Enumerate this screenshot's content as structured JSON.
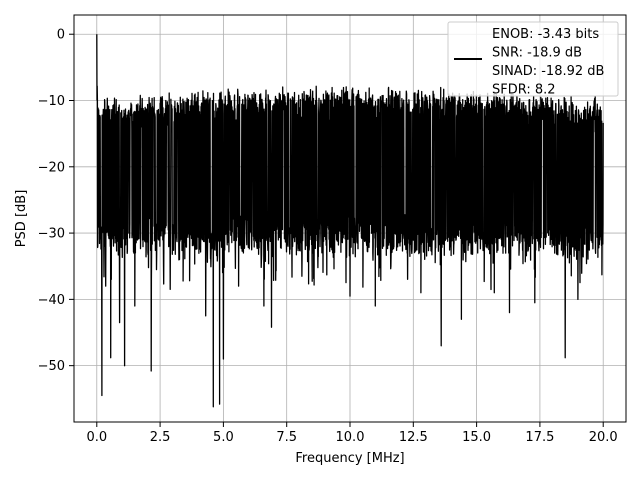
{
  "chart_data": {
    "type": "line",
    "title": "",
    "xlabel": "Frequency [MHz]",
    "ylabel": "PSD [dB]",
    "xlim": [
      -0.9,
      20.9
    ],
    "ylim": [
      -58.5,
      2.9
    ],
    "xticks": [
      0.0,
      2.5,
      5.0,
      7.5,
      10.0,
      12.5,
      15.0,
      17.5,
      20.0
    ],
    "xtick_labels": [
      "0.0",
      "2.5",
      "5.0",
      "7.5",
      "10.0",
      "12.5",
      "15.0",
      "17.5",
      "20.0"
    ],
    "yticks": [
      0,
      -10,
      -20,
      -30,
      -40,
      -50
    ],
    "ytick_labels": [
      "0",
      "−10",
      "−20",
      "−30",
      "−40",
      "−50"
    ],
    "grid": true,
    "legend_position": "top-right",
    "legend_entries": [
      "ENOB: -3.43 bits",
      "SNR: -18.9 dB",
      "SINAD: -18.92 dB",
      "SFDR: 8.2"
    ],
    "series": [
      {
        "color": "#000000",
        "approximate_envelope": {
          "peak_at_zero": 0,
          "typical_upper": -12,
          "typical_lower": -30
        },
        "notable_dips": [
          {
            "x": 0.2,
            "y": -54.5
          },
          {
            "x": 0.55,
            "y": -48.8
          },
          {
            "x": 1.1,
            "y": -50.0
          },
          {
            "x": 2.15,
            "y": -50.8
          },
          {
            "x": 4.6,
            "y": -56.2
          },
          {
            "x": 4.85,
            "y": -55.8
          },
          {
            "x": 5.0,
            "y": -49.0
          },
          {
            "x": 13.6,
            "y": -47.0
          },
          {
            "x": 18.5,
            "y": -48.8
          }
        ],
        "minor_dips": [
          {
            "x": 0.35,
            "y": -38.0
          },
          {
            "x": 0.9,
            "y": -43.5
          },
          {
            "x": 1.5,
            "y": -41.0
          },
          {
            "x": 2.9,
            "y": -38.5
          },
          {
            "x": 4.3,
            "y": -42.5
          },
          {
            "x": 5.6,
            "y": -38.0
          },
          {
            "x": 6.6,
            "y": -41.0
          },
          {
            "x": 6.9,
            "y": -44.2
          },
          {
            "x": 8.1,
            "y": -36.5
          },
          {
            "x": 10.0,
            "y": -39.5
          },
          {
            "x": 11.0,
            "y": -41.0
          },
          {
            "x": 12.8,
            "y": -39.0
          },
          {
            "x": 14.4,
            "y": -43.0
          },
          {
            "x": 15.7,
            "y": -39.0
          },
          {
            "x": 16.3,
            "y": -42.0
          },
          {
            "x": 17.3,
            "y": -40.5
          },
          {
            "x": 19.0,
            "y": -40.0
          }
        ]
      }
    ]
  }
}
